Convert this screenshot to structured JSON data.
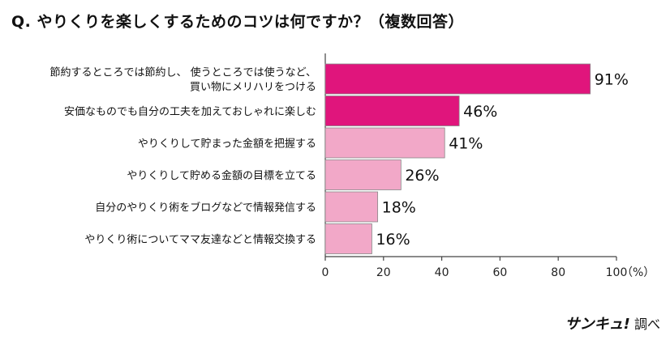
{
  "title": "Q. やりくりを楽しくするためのコツは何ですか？（複数回答）",
  "credit": {
    "brand": "サンキュ!",
    "suffix": "調べ"
  },
  "colors": {
    "highlight": "#e0157c",
    "normal": "#f2a8c8",
    "bar_stroke": "#888888",
    "axis": "#444444"
  },
  "chart_data": {
    "type": "bar",
    "orientation": "horizontal",
    "categories": [
      [
        "節約するところでは節約し、 使うところでは使うなど、",
        "買い物にメリハリをつける"
      ],
      [
        "安価なものでも自分の工夫を加えておしゃれに楽しむ"
      ],
      [
        "やりくりして貯まった金額を把握する"
      ],
      [
        "やりくりして貯める金額の目標を立てる"
      ],
      [
        "自分のやりくり術をブログなどで情報発信する"
      ],
      [
        "やりくり術についてママ友達などと情報交換する"
      ]
    ],
    "values": [
      91,
      46,
      41,
      26,
      18,
      16
    ],
    "value_labels": [
      "91%",
      "46%",
      "41%",
      "26%",
      "18%",
      "16%"
    ],
    "highlighted": [
      true,
      true,
      false,
      false,
      false,
      false
    ],
    "xlim": [
      0,
      100
    ],
    "xticks": [
      "0",
      "20",
      "40",
      "60",
      "80",
      "100"
    ],
    "unit_label": "（%）",
    "grid": false
  }
}
